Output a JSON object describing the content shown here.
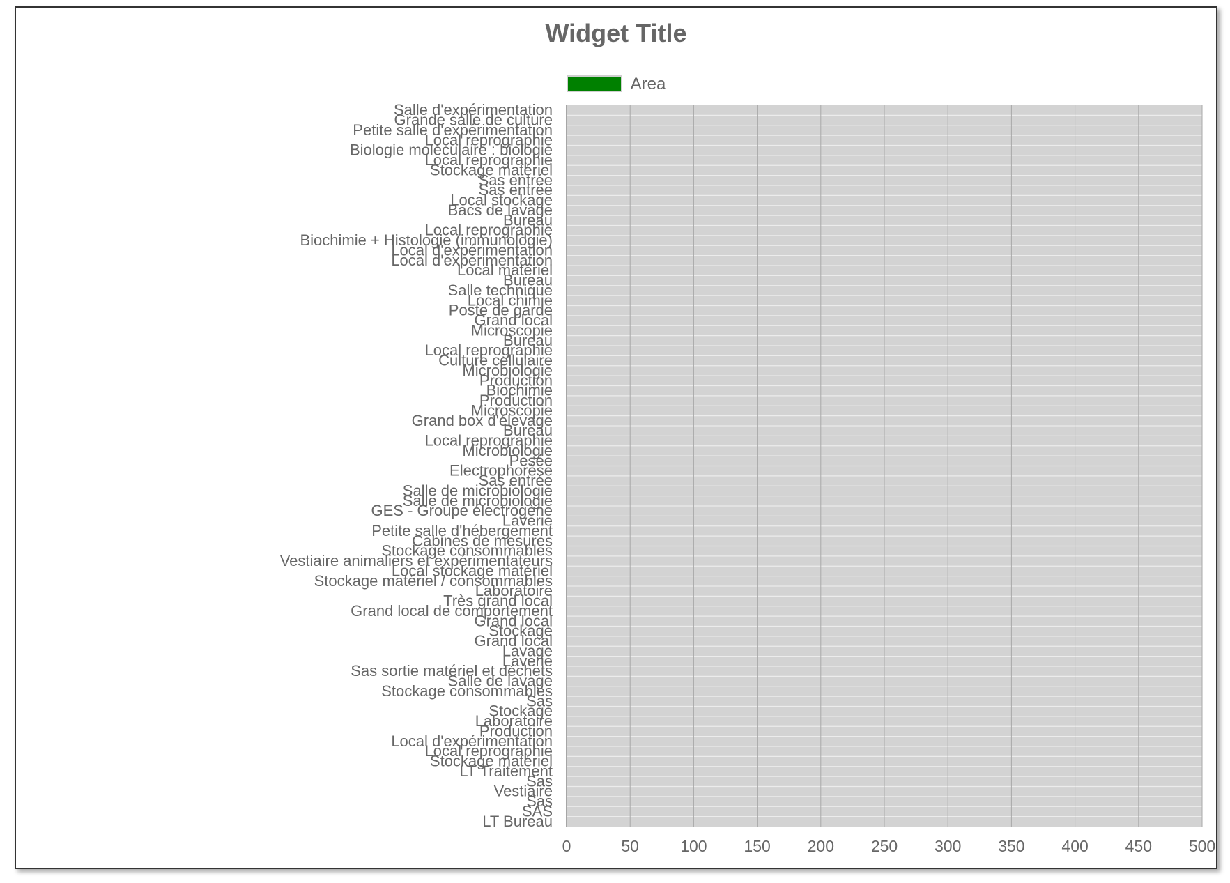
{
  "widget": {
    "title": "Widget Title"
  },
  "colors": {
    "series": "#008000",
    "plot_bg": "#d3d3d3",
    "grid": "#a9a9a9",
    "text": "#666666"
  },
  "chart_data": {
    "type": "bar",
    "orientation": "horizontal",
    "title": "Widget Title",
    "legend": "top",
    "grid": true,
    "xlim": [
      0,
      500
    ],
    "xticks": [
      0,
      50,
      100,
      150,
      200,
      250,
      300,
      350,
      400,
      450,
      500
    ],
    "series": [
      {
        "name": "Area",
        "color": "#008000"
      }
    ],
    "categories": [
      "Salle d'expérimentation",
      "Grande salle de culture",
      "Petite salle d'expérimentation",
      "Local reprographie",
      "Biologie moléculaire : biologie",
      "Local reprographie",
      "Stockage matériel",
      "Sas entrée",
      "Sas entrée",
      "Local stockage",
      "Bacs de lavage",
      "Bureau",
      "Local reprographie",
      "Biochimie + Histologie (immunologie)",
      "Local d'expérimentation",
      "Local d'expérimentation",
      "Local matériel",
      "Bureau",
      "Salle technique",
      "Local chimie",
      "Poste de garde",
      "Grand local",
      "Microscopie",
      "Bureau",
      "Local reprographie",
      "Culture cellulaire",
      "Microbiologie",
      "Production",
      "Biochimie",
      "Production",
      "Microscopie",
      "Grand box d'élevage",
      "Bureau",
      "Local reprographie",
      "Microbiologie",
      "Pesée",
      "Electrophorèse",
      "Sas entrée",
      "Salle de microbiologie",
      "Salle de microbiologie",
      "GES - Groupe électrogène",
      "Laverie",
      "Petite salle d'hébergement",
      "Cabines de mesures",
      "Stockage consommables",
      "Vestiaire animaliers et expérimentateurs",
      "Local stockage matériel",
      "Stockage matériel / consommables",
      "Laboratoire",
      "Très grand local",
      "Grand local de comportement",
      "Grand local",
      "Stockage",
      "Grand local",
      "Lavage",
      "Laverie",
      "Sas sortie matériel et déchets",
      "Salle de lavage",
      "Stockage consommables",
      "Sas",
      "Stockage",
      "Laboratoire",
      "Production",
      "Local d'expérimentation",
      "Local reprographie",
      "Stockage matériel",
      "LT Traitement",
      "Sas",
      "Vestiaire",
      "Sas",
      "SAS",
      "LT Bureau"
    ],
    "values": [
      0,
      0,
      0,
      0,
      0,
      0,
      0,
      0,
      0,
      0,
      0,
      0,
      0,
      0,
      0,
      0,
      0,
      0,
      0,
      0,
      0,
      0,
      0,
      0,
      0,
      0,
      0,
      0,
      0,
      0,
      0,
      0,
      0,
      0,
      0,
      0,
      0,
      0,
      0,
      0,
      0,
      0,
      0,
      0,
      0,
      0,
      0,
      0,
      0,
      0,
      0,
      0,
      0,
      0,
      0,
      0,
      0,
      0,
      0,
      0,
      0,
      0,
      0,
      0,
      0,
      0,
      0,
      0,
      0,
      0,
      0,
      0
    ]
  }
}
